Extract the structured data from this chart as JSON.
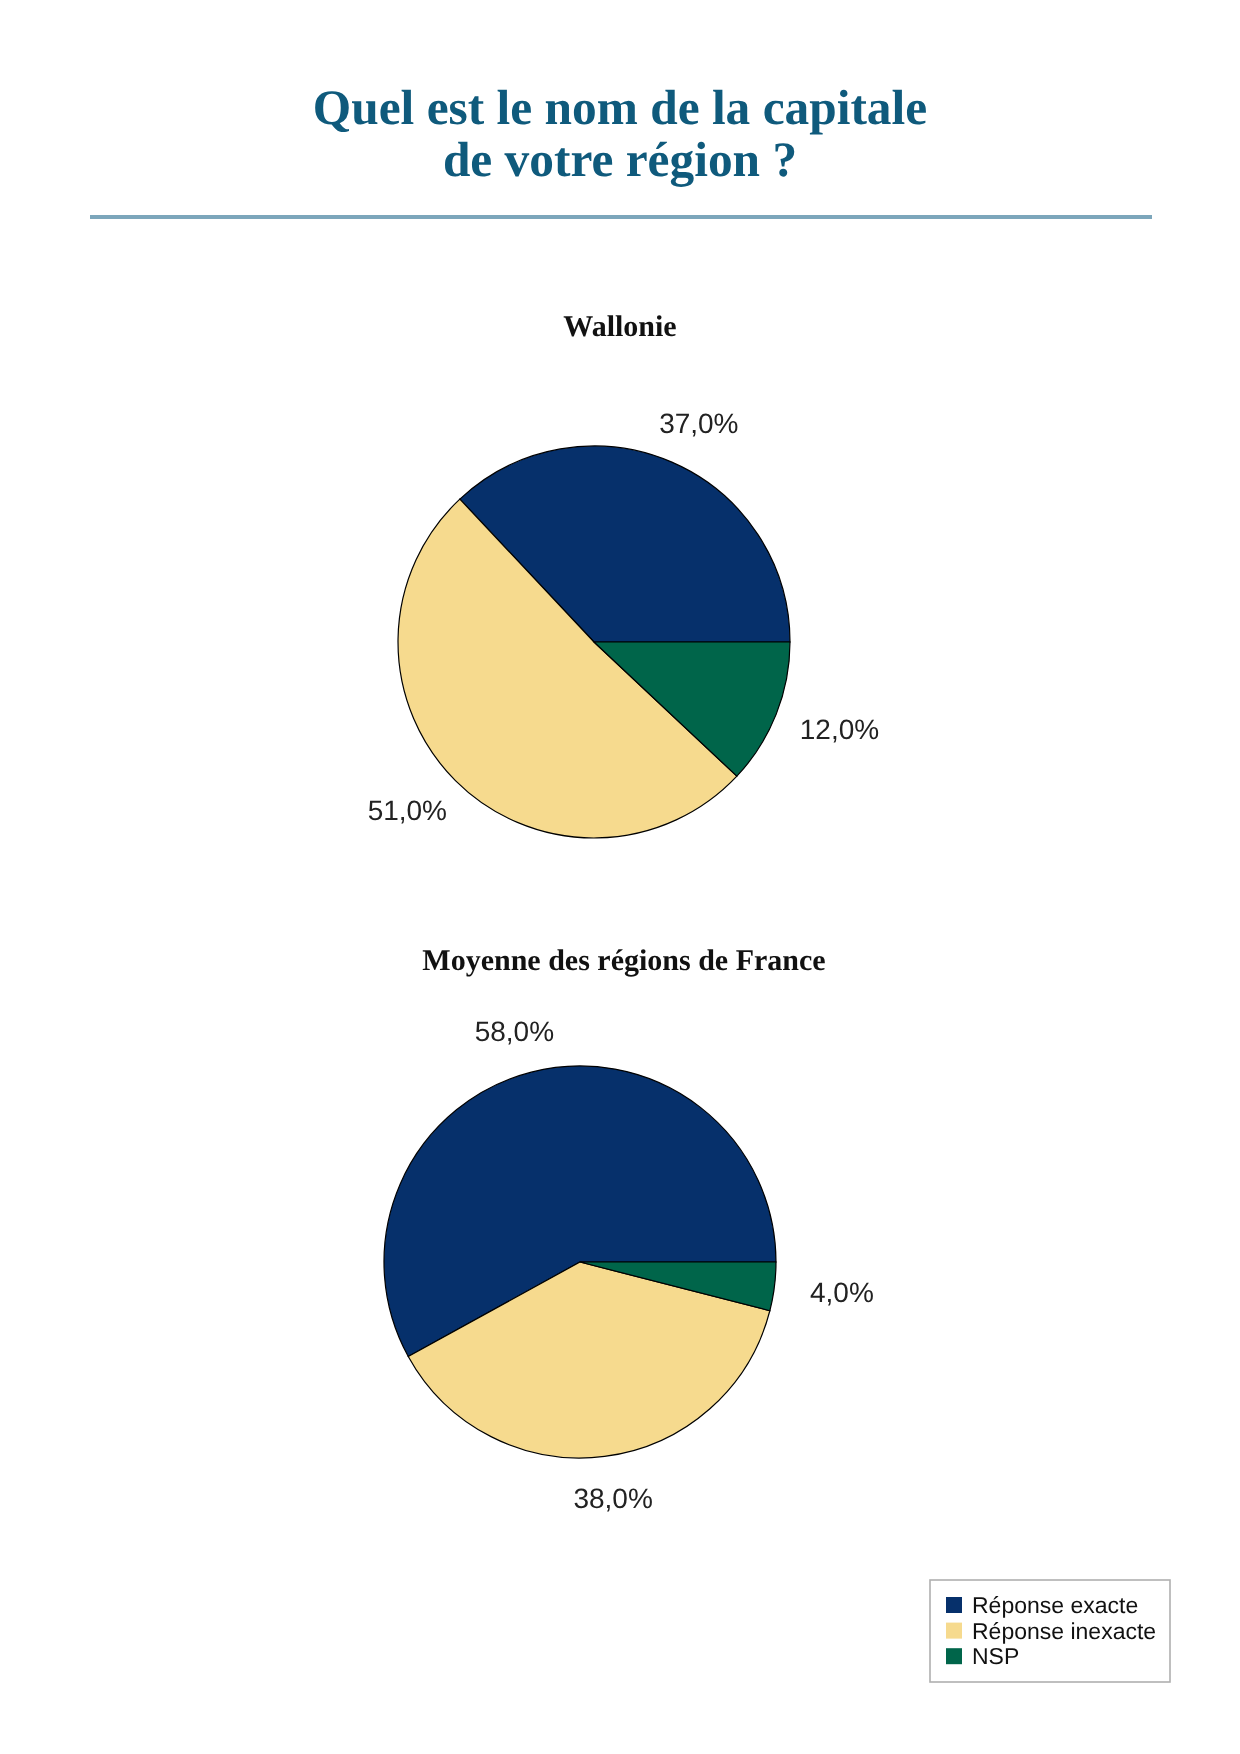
{
  "chart_data": [
    {
      "type": "pie",
      "title": "Quel est le nom de la capitale de votre région ?",
      "subtitle": "Wallonie",
      "categories": [
        "Réponse exacte",
        "Réponse inexacte",
        "NSP"
      ],
      "values": [
        37.0,
        51.0,
        12.0
      ],
      "colors": [
        "#06306b",
        "#f6da8e",
        "#00654a"
      ],
      "value_labels": [
        "37,0%",
        "51,0%",
        "12,0%"
      ],
      "legend": "bottom right"
    },
    {
      "type": "pie",
      "title": "Moyenne des régions de France",
      "categories": [
        null,
        null,
        null
      ],
      "values": [
        58.0,
        38.0,
        4.0
      ],
      "colors": [
        "#06306b",
        "#f6da8e",
        "#00654a"
      ],
      "value_labels": [
        "58,0%",
        "38,0%",
        "4,0%"
      ]
    }
  ]
}
